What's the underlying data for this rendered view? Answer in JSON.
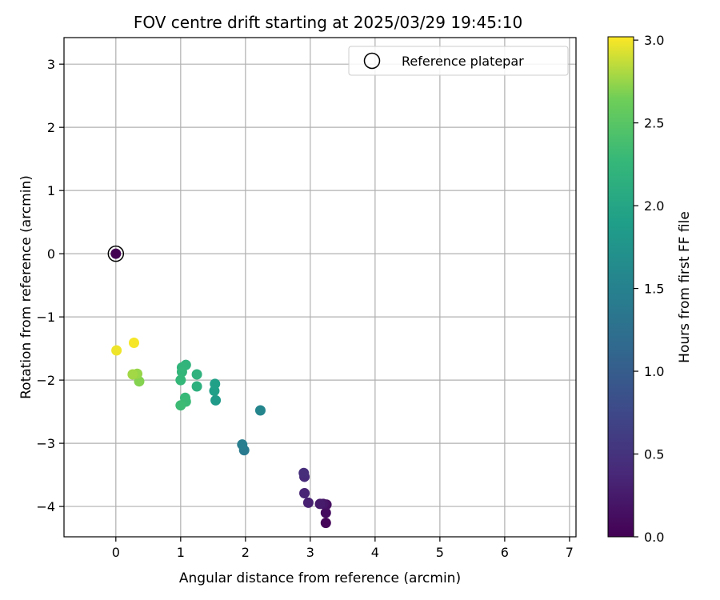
{
  "chart_data": {
    "type": "scatter",
    "title": "FOV centre drift starting at 2025/03/29 19:45:10",
    "xlabel": "Angular distance from reference (arcmin)",
    "ylabel": "Rotation from reference (arcmin)",
    "xlim": [
      -0.8,
      7.1
    ],
    "ylim": [
      -4.48,
      3.42
    ],
    "xticks": [
      0,
      1,
      2,
      3,
      4,
      5,
      6,
      7
    ],
    "yticks": [
      3,
      2,
      1,
      0,
      -1,
      -2,
      -3,
      -4
    ],
    "grid": true,
    "legend": {
      "position": "top-right",
      "entries": [
        "Reference platepar"
      ]
    },
    "reference_point": {
      "x": 0.0,
      "y": 0.0
    },
    "colorbar": {
      "label": "Hours from first FF file",
      "range": [
        0.0,
        3.02
      ],
      "ticks": [
        "0.0",
        "0.5",
        "1.0",
        "1.5",
        "2.0",
        "2.5",
        "3.0"
      ],
      "colormap": "viridis"
    },
    "points": [
      {
        "x": 0.0,
        "y": 0.0,
        "hours": 0.0
      },
      {
        "x": 3.24,
        "y": -4.26,
        "hours": 0.05
      },
      {
        "x": 3.24,
        "y": -4.1,
        "hours": 0.1
      },
      {
        "x": 3.25,
        "y": -3.97,
        "hours": 0.15
      },
      {
        "x": 3.2,
        "y": -3.96,
        "hours": 0.2
      },
      {
        "x": 3.15,
        "y": -3.96,
        "hours": 0.25
      },
      {
        "x": 2.97,
        "y": -3.94,
        "hours": 0.3
      },
      {
        "x": 2.91,
        "y": -3.79,
        "hours": 0.35
      },
      {
        "x": 2.91,
        "y": -3.53,
        "hours": 0.4
      },
      {
        "x": 2.9,
        "y": -3.47,
        "hours": 0.45
      },
      {
        "x": 1.98,
        "y": -3.11,
        "hours": 1.4
      },
      {
        "x": 1.95,
        "y": -3.02,
        "hours": 1.45
      },
      {
        "x": 2.23,
        "y": -2.48,
        "hours": 1.55
      },
      {
        "x": 1.54,
        "y": -2.32,
        "hours": 1.85
      },
      {
        "x": 1.52,
        "y": -2.17,
        "hours": 1.9
      },
      {
        "x": 1.53,
        "y": -2.06,
        "hours": 1.92
      },
      {
        "x": 1.25,
        "y": -2.1,
        "hours": 2.15
      },
      {
        "x": 1.25,
        "y": -1.91,
        "hours": 2.18
      },
      {
        "x": 1.08,
        "y": -1.76,
        "hours": 2.2
      },
      {
        "x": 1.02,
        "y": -1.8,
        "hours": 2.22
      },
      {
        "x": 1.02,
        "y": -1.87,
        "hours": 2.24
      },
      {
        "x": 1.0,
        "y": -2.0,
        "hours": 2.26
      },
      {
        "x": 1.07,
        "y": -2.28,
        "hours": 2.28
      },
      {
        "x": 1.08,
        "y": -2.34,
        "hours": 2.3
      },
      {
        "x": 1.0,
        "y": -2.4,
        "hours": 2.32
      },
      {
        "x": 0.36,
        "y": -2.02,
        "hours": 2.7
      },
      {
        "x": 0.33,
        "y": -1.9,
        "hours": 2.75
      },
      {
        "x": 0.26,
        "y": -1.91,
        "hours": 2.78
      },
      {
        "x": 0.01,
        "y": -1.53,
        "hours": 2.98
      },
      {
        "x": 0.28,
        "y": -1.41,
        "hours": 3.0
      }
    ]
  }
}
